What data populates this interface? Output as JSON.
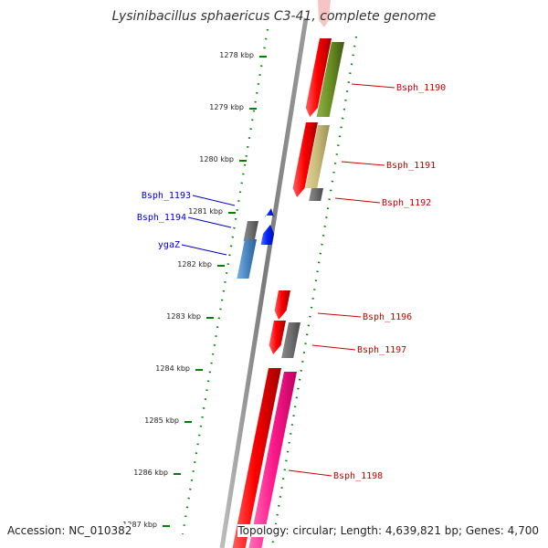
{
  "title": "Lysinibacillus sphaericus C3-41, complete genome",
  "footer": {
    "accession": "Accession: NC_010382",
    "summary": "Topology: circular; Length: 4,639,821 bp; Genes: 4,700"
  },
  "colors": {
    "backbone": "#8a8a8a",
    "forward_label": "#cc0000",
    "reverse_label": "#0000cc",
    "tick": "#008000",
    "red": "#e01010",
    "green": "#6b8e23",
    "khaki": "#c8bb78",
    "gray": "#6e6e6e",
    "blue": "#1030e0",
    "steelblue": "#4a86c0",
    "magenta": "#ff1a8c"
  },
  "ticks": [
    "1278 kbp",
    "1279 kbp",
    "1280 kbp",
    "1281 kbp",
    "1282 kbp",
    "1283 kbp",
    "1284 kbp",
    "1285 kbp",
    "1286 kbp",
    "1287 kbp"
  ],
  "genes": [
    {
      "label": "",
      "strand": "+",
      "color": "red"
    },
    {
      "label": "Bsph_1190",
      "strand": "+",
      "color": "green"
    },
    {
      "label": "",
      "strand": "+",
      "color": "red"
    },
    {
      "label": "Bsph_1191",
      "strand": "+",
      "color": "khaki"
    },
    {
      "label": "Bsph_1192",
      "strand": "+",
      "color": "gray"
    },
    {
      "label": "Bsph_1193",
      "strand": "-",
      "color": "gray"
    },
    {
      "label": "Bsph_1194",
      "strand": "-",
      "color": "blue"
    },
    {
      "label": "ygaZ",
      "strand": "-",
      "color": "steelblue"
    },
    {
      "label": "",
      "strand": "-",
      "color": "blue"
    },
    {
      "label": "",
      "strand": "+",
      "color": "red"
    },
    {
      "label": "Bsph_1196",
      "strand": "+",
      "color": "red"
    },
    {
      "label": "Bsph_1197",
      "strand": "+",
      "color": "gray"
    },
    {
      "label": "",
      "strand": "+",
      "color": "red"
    },
    {
      "label": "Bsph_1198",
      "strand": "+",
      "color": "magenta"
    }
  ]
}
